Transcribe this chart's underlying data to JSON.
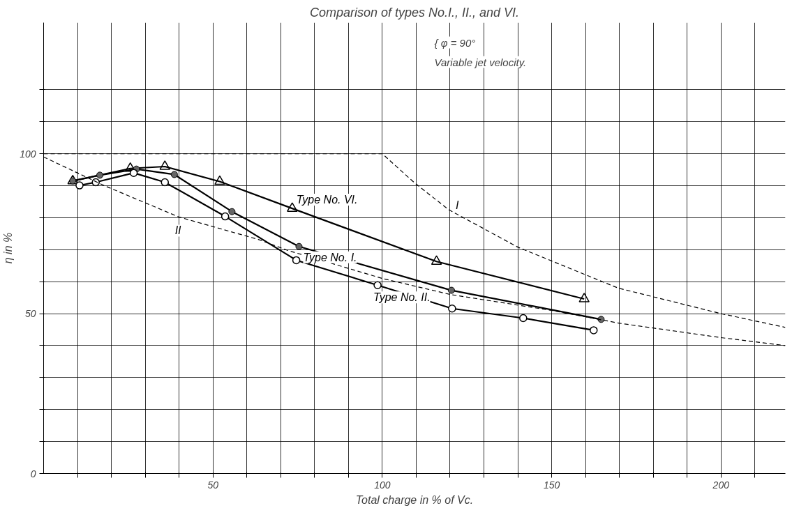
{
  "chart_data": {
    "type": "line",
    "title": "Comparison of types No.I., II., and VI.",
    "annotations": [
      "{ φ = 90°",
      "Variable jet velocity."
    ],
    "xlabel": "Total charge in % of Vc.",
    "ylabel": "η in %",
    "xlim": [
      0,
      219
    ],
    "ylim": [
      0,
      141
    ],
    "xticks": [
      {
        "value": 10,
        "label": null
      },
      {
        "value": 20,
        "label": null
      },
      {
        "value": 30,
        "label": null
      },
      {
        "value": 40,
        "label": null
      },
      50,
      {
        "value": 60,
        "label": null
      },
      {
        "value": 70,
        "label": null
      },
      {
        "value": 80,
        "label": null
      },
      {
        "value": 90,
        "label": null
      },
      100,
      {
        "value": 110,
        "label": null
      },
      {
        "value": 120,
        "label": null
      },
      {
        "value": 130,
        "label": null
      },
      {
        "value": 140,
        "label": null
      },
      150,
      {
        "value": 160,
        "label": null
      },
      {
        "value": 170,
        "label": null
      },
      {
        "value": 180,
        "label": null
      },
      {
        "value": 190,
        "label": null
      },
      200,
      {
        "value": 210,
        "label": null
      }
    ],
    "yticks": [
      0,
      {
        "value": 10,
        "label": null
      },
      {
        "value": 20,
        "label": null
      },
      {
        "value": 30,
        "label": null
      },
      {
        "value": 40,
        "label": null
      },
      50,
      {
        "value": 60,
        "label": null
      },
      {
        "value": 70,
        "label": null
      },
      {
        "value": 80,
        "label": null
      },
      {
        "value": 90,
        "label": null
      },
      100,
      {
        "value": 110,
        "label": null
      },
      {
        "value": 120,
        "label": null
      }
    ],
    "grid": true,
    "legend": false,
    "series": [
      {
        "name": "Type No. VI.",
        "color": "#000000",
        "marker": "triangle",
        "line_style": "solid",
        "x": [
          8.6,
          25.6,
          35.8,
          52,
          73.4,
          116,
          159.6
        ],
        "values": [
          91.5,
          95.4,
          96,
          91.3,
          82.9,
          66.3,
          54.6
        ]
      },
      {
        "name": "Type No. I.",
        "color": "#000000",
        "marker": "circle",
        "line_style": "solid",
        "x": [
          8.6,
          16.6,
          27.4,
          38.6,
          55.6,
          75.4,
          120.4,
          164.6
        ],
        "values": [
          91.5,
          93.3,
          95.2,
          93.5,
          81.9,
          71,
          57.3,
          48.2
        ]
      },
      {
        "name": "Type No. II.",
        "color": "#000000",
        "marker": "circle_open",
        "line_style": "solid",
        "x": [
          10.6,
          15.4,
          26.6,
          35.8,
          53.6,
          74.6,
          98.6,
          120.6,
          141.6,
          162.4
        ],
        "values": [
          90.1,
          91.1,
          94,
          91.1,
          80.4,
          66.7,
          58.9,
          51.6,
          48.6,
          44.8
        ]
      },
      {
        "name": "I",
        "color": "#000000",
        "marker": "none",
        "line_style": "dashed",
        "x": [
          0,
          100,
          109.4,
          119.6,
          140,
          169.6,
          200,
          219
        ],
        "values": [
          100,
          100,
          91,
          82.5,
          70.8,
          58,
          50,
          45.7
        ]
      },
      {
        "name": "II",
        "color": "#000000",
        "marker": "none",
        "line_style": "dashed",
        "x": [
          0,
          18,
          40,
          63.4,
          72,
          100,
          120,
          150,
          170,
          200,
          219
        ],
        "values": [
          99,
          90,
          80.2,
          73.2,
          69.8,
          61,
          56,
          51,
          47,
          42.5,
          40
        ]
      }
    ]
  }
}
